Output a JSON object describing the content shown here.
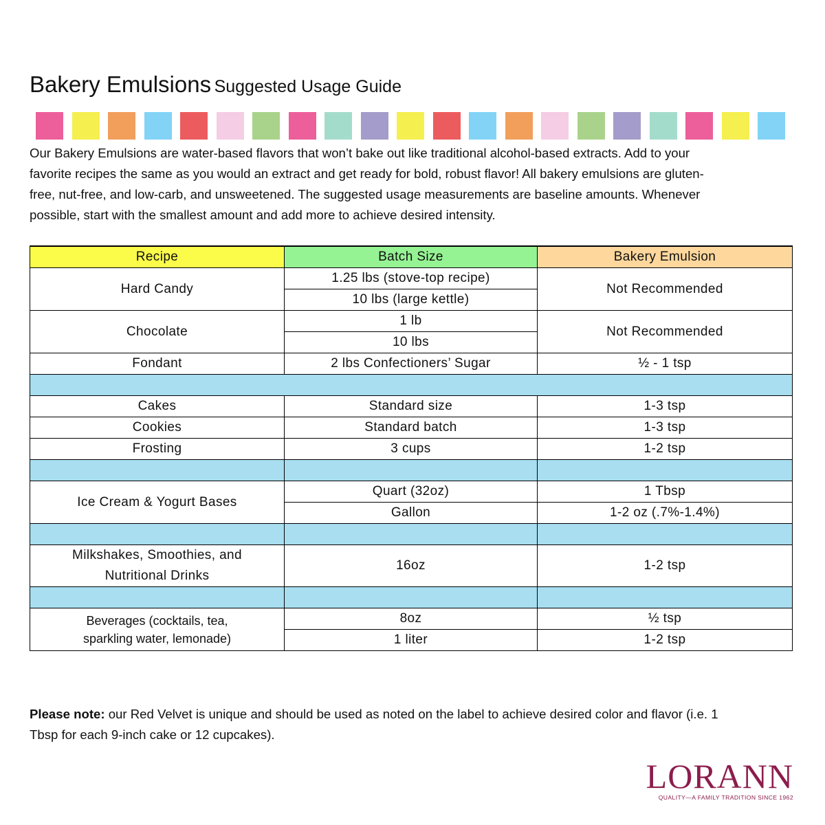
{
  "header": {
    "title": "Bakery Emulsions",
    "subtitle": "Suggested Usage Guide"
  },
  "intro": [
    "Our Bakery Emulsions are water-based flavors that won’t bake out like traditional alcohol-based extracts. Add to your",
    "favorite recipes the same as you would an extract and get ready for bold, robust flavor! All bakery emulsions are gluten-",
    "free, nut-free, and low-carb, and unsweetened. The suggested usage measurements are baseline amounts. Whenever",
    "possible, start with the smallest amount and add more to achieve desired intensity."
  ],
  "table": {
    "columns": [
      "Recipe",
      "Batch Size",
      "Bakery Emulsion"
    ],
    "rows": [
      {
        "recipe": [
          "Hard Candy"
        ],
        "batch": [
          "1.25 lbs (stove-top recipe)",
          "10 lbs (large kettle)"
        ],
        "emulsion": [
          "Not Recommended"
        ]
      },
      {
        "recipe": [
          "Chocolate"
        ],
        "batch": [
          "1 lb",
          "10 lbs"
        ],
        "emulsion": [
          "Not Recommended"
        ]
      },
      {
        "recipe": [
          "Fondant"
        ],
        "batch": [
          "2 lbs Confectioners’ Sugar"
        ],
        "emulsion": [
          "½ - 1 tsp"
        ]
      },
      {
        "recipe": [
          "Cakes"
        ],
        "batch": [
          "Standard size"
        ],
        "emulsion": [
          "1-3 tsp"
        ]
      },
      {
        "recipe": [
          "Cookies"
        ],
        "batch": [
          "Standard batch"
        ],
        "emulsion": [
          "1-3 tsp"
        ]
      },
      {
        "recipe": [
          "Frosting"
        ],
        "batch": [
          "3 cups"
        ],
        "emulsion": [
          "1-2 tsp"
        ]
      },
      {
        "recipe": [
          "Ice Cream & Yogurt Bases"
        ],
        "batch": [
          "Quart (32oz)",
          "Gallon"
        ],
        "emulsion": [
          "1 Tbsp",
          "1-2 oz (.7%-1.4%)"
        ]
      },
      {
        "recipe": [
          "Milkshakes, Smoothies, and",
          "Nutritional Drinks"
        ],
        "batch": [
          "16oz"
        ],
        "emulsion": [
          "1-2 tsp"
        ]
      },
      {
        "recipe": [
          "Beverages (cocktails, tea,",
          "sparkling water, lemonade)"
        ],
        "batch": [
          "8oz",
          "1 liter"
        ],
        "emulsion": [
          "½ tsp",
          "1-2 tsp"
        ]
      }
    ]
  },
  "note": {
    "label": "Please note:",
    "lines": [
      " our Red Velvet is unique and should be used as noted on the label to achieve desired color and flavor (i.e. 1",
      "Tbsp for each 9-inch cake or 12 cupcakes)."
    ]
  },
  "logo": {
    "brand": "LORANN",
    "tagline": "QUALITY—A FAMILY TRADITION SINCE 1962"
  }
}
